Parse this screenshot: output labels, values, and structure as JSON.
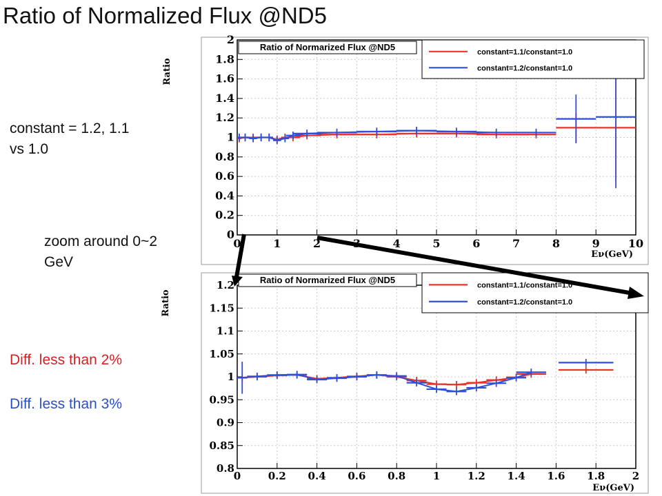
{
  "slide": {
    "title": "Ratio of Normalized Flux @ND5",
    "note_constant_line1": "constant = 1.2, 1.1",
    "note_constant_line2": "vs 1.0",
    "note_zoom_line1": "zoom around 0~2",
    "note_zoom_line2": "GeV",
    "diff_red": "Diff. less than 2%",
    "diff_blue": "Diff. less than 3%"
  },
  "colors": {
    "series_1_1": "#e8332a",
    "series_1_2": "#2f4fd8",
    "diff_red": "#d42020",
    "diff_blue": "#2a4fc2",
    "grid": "#c8c8c8"
  },
  "chart_data": [
    {
      "type": "line",
      "title": "Ratio of Normarized Flux @ND5",
      "xlabel": "Eν(GeV)",
      "ylabel": "Ratio",
      "xlim": [
        0,
        10
      ],
      "ylim": [
        0,
        2
      ],
      "xticks": [
        0,
        1,
        2,
        3,
        4,
        5,
        6,
        7,
        8,
        9,
        10
      ],
      "xtick_labels": [
        "0",
        "1",
        "2",
        "3",
        "4",
        "5",
        "6",
        "7",
        "8",
        "9",
        "10"
      ],
      "yticks": [
        0,
        0.2,
        0.4,
        0.6,
        0.8,
        1,
        1.2,
        1.4,
        1.6,
        1.8,
        2
      ],
      "ytick_labels": [
        "0",
        "0.2",
        "0.4",
        "0.6",
        "0.8",
        "1",
        "1.2",
        "1.4",
        "1.6",
        "1.8",
        "2"
      ],
      "grid": true,
      "legend_position": "top-right",
      "series": [
        {
          "name": "constant=1.1/constant=1.0",
          "color": "#e8332a",
          "points": [
            {
              "x": 0.05,
              "y": 0.99
            },
            {
              "x": 0.2,
              "y": 1.0
            },
            {
              "x": 0.4,
              "y": 1.0
            },
            {
              "x": 0.6,
              "y": 1.0
            },
            {
              "x": 0.8,
              "y": 1.0
            },
            {
              "x": 1.0,
              "y": 0.98
            },
            {
              "x": 1.2,
              "y": 1.0
            },
            {
              "x": 1.4,
              "y": 1.0
            },
            {
              "x": 1.75,
              "y": 1.02
            },
            {
              "x": 2.5,
              "y": 1.03
            },
            {
              "x": 3.5,
              "y": 1.03
            },
            {
              "x": 4.5,
              "y": 1.04
            },
            {
              "x": 5.5,
              "y": 1.04
            },
            {
              "x": 6.5,
              "y": 1.03
            },
            {
              "x": 7.5,
              "y": 1.03
            },
            {
              "x": 8.5,
              "y": 1.1,
              "err": 0.15
            },
            {
              "x": 9.5,
              "y": 1.1,
              "err": 0.55
            }
          ]
        },
        {
          "name": "constant=1.2/constant=1.0",
          "color": "#2f4fd8",
          "points": [
            {
              "x": 0.05,
              "y": 1.0
            },
            {
              "x": 0.2,
              "y": 1.0
            },
            {
              "x": 0.4,
              "y": 0.99
            },
            {
              "x": 0.6,
              "y": 1.0
            },
            {
              "x": 0.8,
              "y": 1.0
            },
            {
              "x": 1.0,
              "y": 0.97
            },
            {
              "x": 1.2,
              "y": 0.99
            },
            {
              "x": 1.4,
              "y": 1.02
            },
            {
              "x": 1.75,
              "y": 1.04
            },
            {
              "x": 2.5,
              "y": 1.05
            },
            {
              "x": 3.5,
              "y": 1.06
            },
            {
              "x": 4.5,
              "y": 1.07
            },
            {
              "x": 5.5,
              "y": 1.06
            },
            {
              "x": 6.5,
              "y": 1.05
            },
            {
              "x": 7.5,
              "y": 1.05
            },
            {
              "x": 8.5,
              "y": 1.19,
              "err": 0.25
            },
            {
              "x": 9.5,
              "y": 1.21,
              "err": 0.73
            }
          ]
        }
      ]
    },
    {
      "type": "line",
      "title": "Ratio of Normarized Flux @ND5",
      "xlabel": "Eν(GeV)",
      "ylabel": "Ratio",
      "xlim": [
        0,
        2
      ],
      "ylim": [
        0.8,
        1.2
      ],
      "xticks": [
        0,
        0.2,
        0.4,
        0.6,
        0.8,
        1,
        1.2,
        1.4,
        1.6,
        1.8,
        2
      ],
      "xtick_labels": [
        "0",
        "0.2",
        "0.4",
        "0.6",
        "0.8",
        "1",
        "1.2",
        "1.4",
        "1.6",
        "1.8",
        "2"
      ],
      "yticks": [
        0.8,
        0.85,
        0.9,
        0.95,
        1,
        1.05,
        1.1,
        1.15,
        1.2
      ],
      "ytick_labels": [
        "0.8",
        "0.85",
        "0.9",
        "0.95",
        "1",
        "1.05",
        "1.1",
        "1.15",
        "1.2"
      ],
      "grid": true,
      "legend_position": "top-right",
      "series": [
        {
          "name": "constant=1.1/constant=1.0",
          "color": "#e8332a",
          "points": [
            {
              "x": 0.025,
              "y": 0.998
            },
            {
              "x": 0.1,
              "y": 1.0
            },
            {
              "x": 0.2,
              "y": 1.003
            },
            {
              "x": 0.3,
              "y": 1.004
            },
            {
              "x": 0.4,
              "y": 0.996
            },
            {
              "x": 0.5,
              "y": 0.998
            },
            {
              "x": 0.6,
              "y": 1.001
            },
            {
              "x": 0.7,
              "y": 1.004
            },
            {
              "x": 0.8,
              "y": 1.0
            },
            {
              "x": 0.9,
              "y": 0.992
            },
            {
              "x": 1.0,
              "y": 0.984
            },
            {
              "x": 1.1,
              "y": 0.983
            },
            {
              "x": 1.2,
              "y": 0.987
            },
            {
              "x": 1.3,
              "y": 0.993
            },
            {
              "x": 1.4,
              "y": 0.999
            },
            {
              "x": 1.475,
              "y": 1.006
            },
            {
              "x": 1.75,
              "y": 1.015
            }
          ]
        },
        {
          "name": "constant=1.2/constant=1.0",
          "color": "#2f4fd8",
          "points": [
            {
              "x": 0.025,
              "y": 0.998,
              "err": 0.035
            },
            {
              "x": 0.1,
              "y": 1.001
            },
            {
              "x": 0.2,
              "y": 1.004
            },
            {
              "x": 0.3,
              "y": 1.005
            },
            {
              "x": 0.4,
              "y": 0.994
            },
            {
              "x": 0.5,
              "y": 0.997
            },
            {
              "x": 0.6,
              "y": 1.0
            },
            {
              "x": 0.7,
              "y": 1.004
            },
            {
              "x": 0.8,
              "y": 1.002
            },
            {
              "x": 0.9,
              "y": 0.987
            },
            {
              "x": 1.0,
              "y": 0.973
            },
            {
              "x": 1.1,
              "y": 0.968
            },
            {
              "x": 1.2,
              "y": 0.976
            },
            {
              "x": 1.3,
              "y": 0.986
            },
            {
              "x": 1.4,
              "y": 0.998
            },
            {
              "x": 1.475,
              "y": 1.01
            },
            {
              "x": 1.75,
              "y": 1.031
            }
          ]
        }
      ]
    }
  ]
}
